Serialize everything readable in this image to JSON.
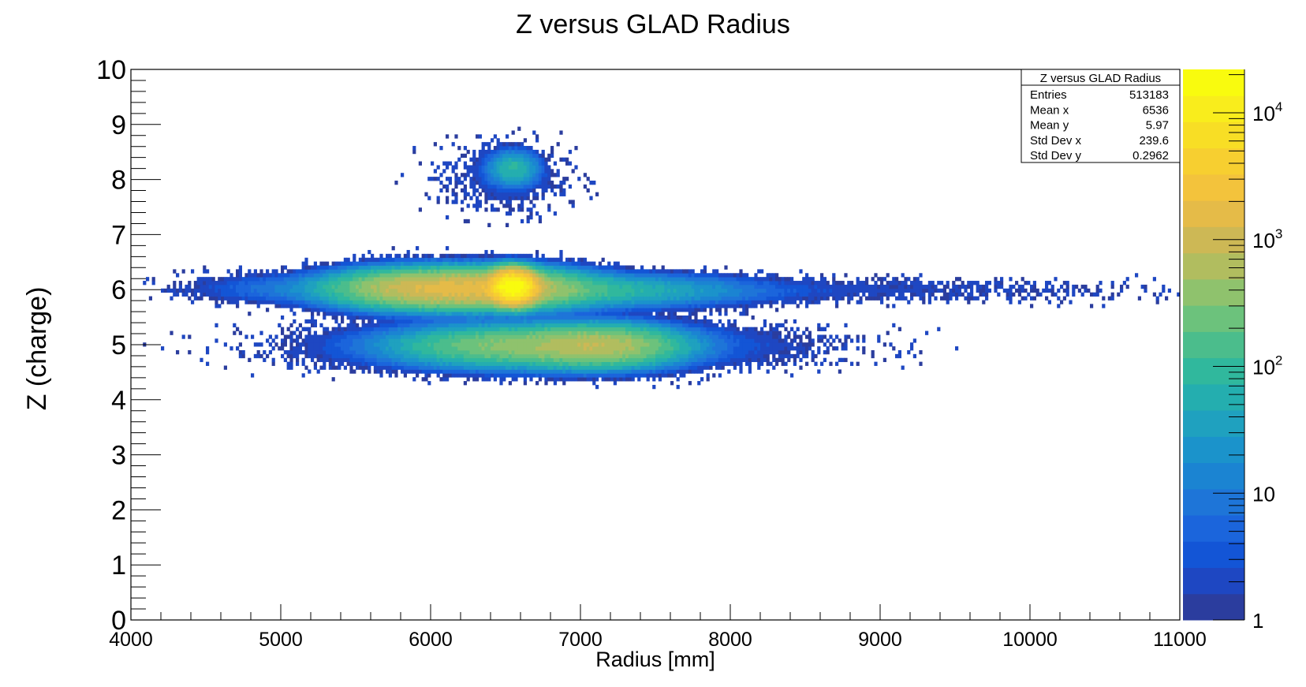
{
  "chart_data": {
    "type": "heatmap",
    "title": "Z versus GLAD Radius",
    "xlabel": "Radius [mm]",
    "ylabel": "Z (charge)",
    "xlim": [
      4000,
      11000
    ],
    "ylim": [
      0,
      10
    ],
    "x_ticks": [
      "4000",
      "5000",
      "6000",
      "7000",
      "8000",
      "9000",
      "10000",
      "11000"
    ],
    "y_ticks": [
      "0",
      "1",
      "2",
      "3",
      "4",
      "5",
      "6",
      "7",
      "8",
      "9",
      "10"
    ],
    "z_scale": "log",
    "zlim": [
      1,
      22000
    ],
    "colorbar_ticks": [
      {
        "value": 1,
        "label": "1"
      },
      {
        "value": 10,
        "label": "10"
      },
      {
        "value": 100,
        "base": "10",
        "exp": "2"
      },
      {
        "value": 1000,
        "base": "10",
        "exp": "3"
      },
      {
        "value": 10000,
        "base": "10",
        "exp": "4"
      }
    ],
    "palette": [
      "#2b3d9e",
      "#1e47c2",
      "#1355d6",
      "#1b65dc",
      "#1e75d8",
      "#1b84d2",
      "#1b93cb",
      "#1fa1bf",
      "#24aeaf",
      "#30b89d",
      "#4bbd8c",
      "#6cc27c",
      "#8fc26d",
      "#b1bd5f",
      "#cdb855",
      "#e5bb48",
      "#f3c33c",
      "#f7cf30",
      "#f8de25",
      "#f9ed1c",
      "#f9fb0e"
    ],
    "clusters": [
      {
        "x": 6550,
        "y": 6.05,
        "sx": 70,
        "sy": 0.13,
        "peak": 22000
      },
      {
        "x": 6400,
        "y": 6.02,
        "sx": 300,
        "sy": 0.16,
        "peak": 1200
      },
      {
        "x": 5950,
        "y": 6.02,
        "sx": 280,
        "sy": 0.16,
        "peak": 900
      },
      {
        "x": 7050,
        "y": 5.98,
        "sx": 500,
        "sy": 0.14,
        "peak": 80
      },
      {
        "x": 5250,
        "y": 6.02,
        "sx": 400,
        "sy": 0.14,
        "peak": 12
      },
      {
        "x": 8500,
        "y": 6.0,
        "sx": 1300,
        "sy": 0.12,
        "peak": 2
      },
      {
        "x": 6500,
        "y": 4.98,
        "sx": 350,
        "sy": 0.17,
        "peak": 300
      },
      {
        "x": 7100,
        "y": 4.98,
        "sx": 260,
        "sy": 0.17,
        "peak": 700
      },
      {
        "x": 6800,
        "y": 4.98,
        "sx": 800,
        "sy": 0.22,
        "peak": 12
      },
      {
        "x": 6550,
        "y": 8.2,
        "sx": 80,
        "sy": 0.15,
        "peak": 80
      },
      {
        "x": 6500,
        "y": 8.0,
        "sx": 250,
        "sy": 0.35,
        "peak": 2
      }
    ],
    "stats": {
      "title": "Z versus GLAD Radius",
      "rows": [
        {
          "label": "Entries",
          "value": "513183"
        },
        {
          "label": "Mean x",
          "value": "6536"
        },
        {
          "label": "Mean y",
          "value": "5.97"
        },
        {
          "label": "Std Dev x",
          "value": "239.6"
        },
        {
          "label": "Std Dev y",
          "value": "0.2962"
        }
      ]
    }
  }
}
